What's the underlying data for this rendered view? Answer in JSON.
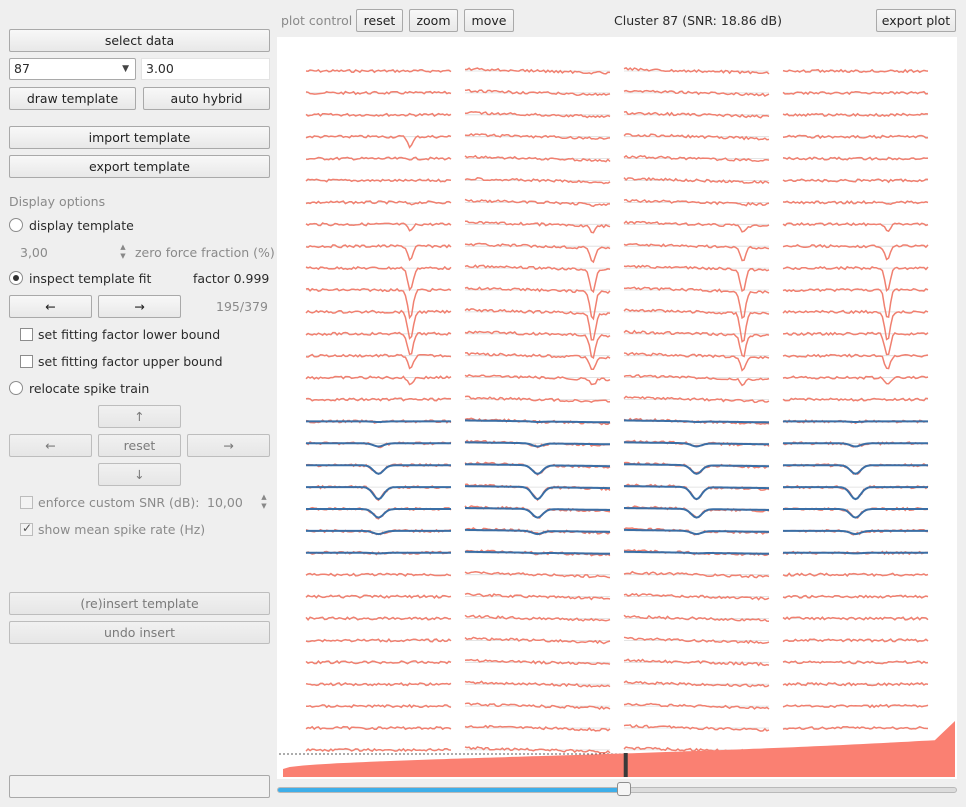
{
  "toolbar": {
    "plot_control": "plot control",
    "reset": "reset",
    "zoom": "zoom",
    "move": "move",
    "export_plot": "export plot"
  },
  "plot_title": "Cluster 87 (SNR: 18.86 dB)",
  "sidebar": {
    "select_data": "select data",
    "cluster_select": "87",
    "threshold_value": "3.00",
    "draw_template": "draw template",
    "auto_hybrid": "auto hybrid",
    "import_template": "import template",
    "export_template": "export template",
    "display_options": "Display options",
    "display_template": "display template",
    "zero_force_value": "3,00",
    "zero_force_label": "zero force fraction (%)",
    "inspect_fit": "inspect template fit",
    "factor": "factor 0.999",
    "prev": "←",
    "next": "→",
    "counter": "195/379",
    "lower_bound": "set fitting factor lower bound",
    "upper_bound": "set fitting factor upper bound",
    "relocate": "relocate spike train",
    "up": "↑",
    "left": "←",
    "reset": "reset",
    "right": "→",
    "down": "↓",
    "enforce_snr": "enforce custom SNR (dB):",
    "snr_value": "10,00",
    "show_rate": "show mean spike rate (Hz)",
    "reinsert": "(re)insert template",
    "undo_insert": "undo insert"
  },
  "colors": {
    "trace": "#f08070",
    "template": "#3a6ea5",
    "rate_fill": "#fa8072",
    "accent": "#3daee9"
  },
  "slider_value": 0.51,
  "grid": {
    "columns": 4,
    "rows": 32,
    "template_rows": [
      16,
      22
    ]
  }
}
